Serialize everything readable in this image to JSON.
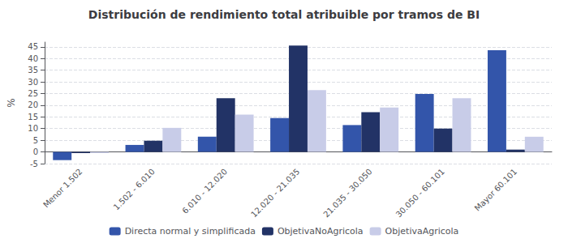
{
  "chart_data": {
    "type": "bar",
    "title": "Distribución de rendimiento total atribuible por tramos de BI",
    "ylabel": "%",
    "categories": [
      "Menor 1.502",
      "1.502 - 6.010",
      "6.010 - 12.020",
      "12.020 - 21.035",
      "21.035 - 30.050",
      "30.050 - 60.101",
      "Mayor 60.101"
    ],
    "series": [
      {
        "name": "Directa normal y simplificada",
        "color": "#3355aa",
        "values": [
          -3.5,
          3.0,
          6.5,
          14.5,
          11.5,
          24.8,
          43.5
        ]
      },
      {
        "name": "ObjetivaNoAgricola",
        "color": "#223366",
        "values": [
          -0.5,
          4.8,
          23.0,
          45.5,
          17.0,
          10.0,
          1.0
        ]
      },
      {
        "name": "ObjetivaAgricola",
        "color": "#c8cce8",
        "values": [
          -0.5,
          10.3,
          16.0,
          26.5,
          19.0,
          23.0,
          6.5
        ]
      }
    ],
    "ylim": [
      -5,
      47
    ],
    "yticks": [
      -5,
      0,
      5,
      10,
      15,
      20,
      25,
      30,
      35,
      40,
      45
    ],
    "grid": true,
    "legend": "bottom"
  }
}
